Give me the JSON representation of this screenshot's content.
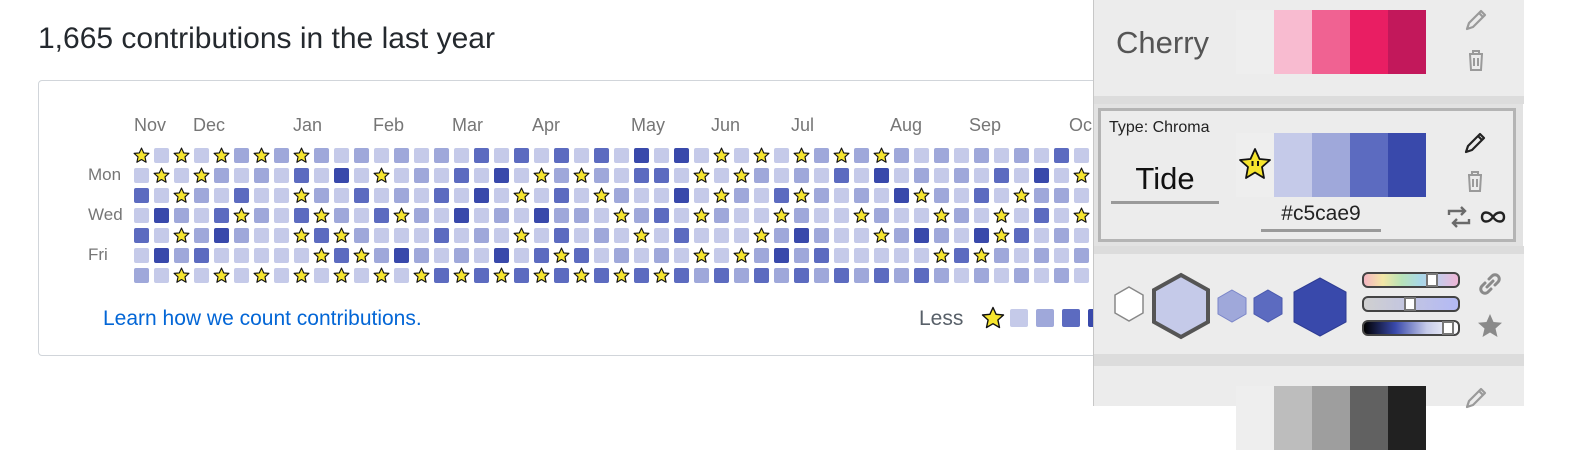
{
  "heading": "1,665 contributions in the last year",
  "months": [
    "Nov",
    "Dec",
    "Jan",
    "Feb",
    "Mar",
    "Apr",
    "May",
    "Jun",
    "Jul",
    "Aug",
    "Sep",
    "Oc"
  ],
  "day_labels": [
    "Mon",
    "Wed",
    "Fri"
  ],
  "learn_link": "Learn how we count contributions.",
  "legend": {
    "less": "Less"
  },
  "colors": {
    "level0": "#c5cae9",
    "level1": "#9fa8da",
    "level2": "#5c6bc0",
    "level3": "#3949ab",
    "star": "#f6e52e",
    "link": "#0366d6"
  },
  "panel": {
    "cherry": {
      "name": "Cherry",
      "swatches": [
        "#eeeeee",
        "#f8bbd0",
        "#f06292",
        "#e91e63",
        "#c2185b"
      ]
    },
    "tide": {
      "type_label": "Type: Chroma",
      "name": "Tide",
      "hex": "#c5cae9",
      "swatches": [
        "#eeeeee",
        "#c5cae9",
        "#9fa8da",
        "#5c6bc0",
        "#3949ab"
      ]
    },
    "grey": {
      "swatches": [
        "#eeeeee",
        "#bdbdbd",
        "#9e9e9e",
        "#616161",
        "#212121"
      ]
    },
    "icons": [
      "pencil-icon",
      "trash-icon",
      "repeat-icon",
      "infinity-icon",
      "link-icon",
      "star-icon"
    ]
  }
}
